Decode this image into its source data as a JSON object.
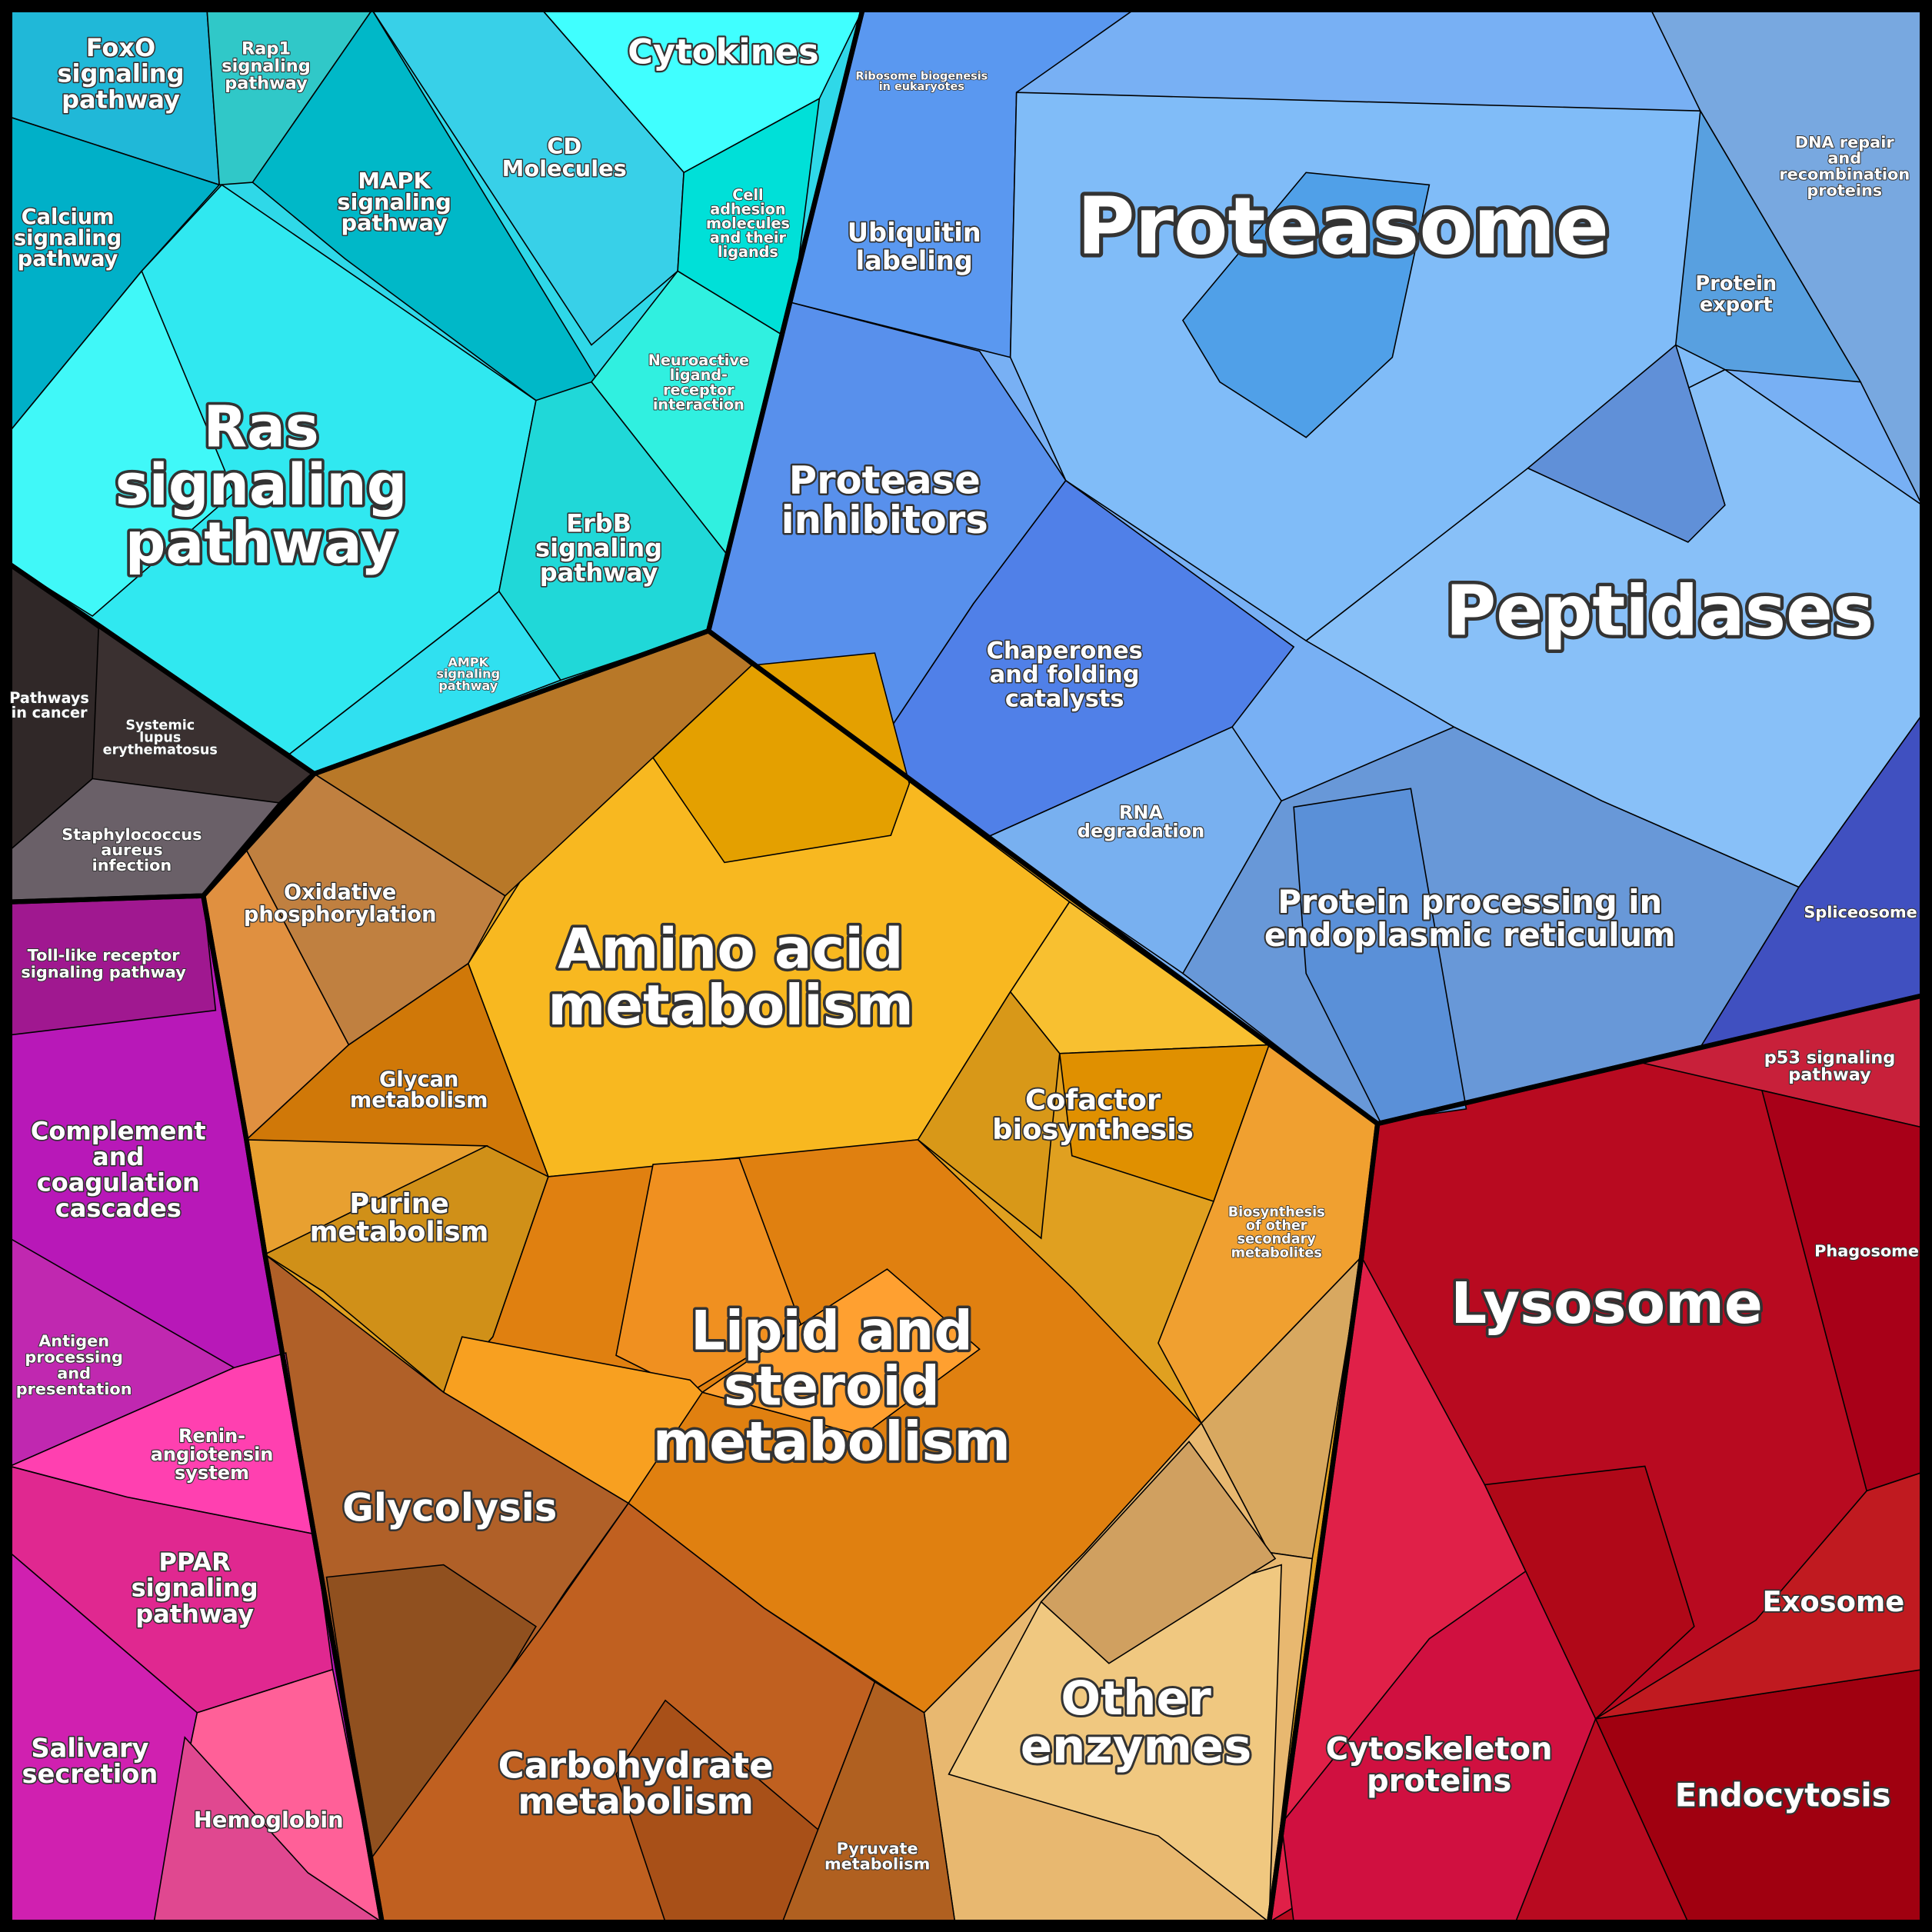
{
  "labels": [
    [
      "FoxO",
      "signaling",
      "pathway"
    ],
    [
      "Rap1",
      "signaling",
      "pathway"
    ],
    [
      "Cytokines"
    ],
    [
      "CD",
      "Molecules"
    ],
    [
      "Calcium",
      "signaling",
      "pathway"
    ],
    [
      "MAPK",
      "signaling",
      "pathway"
    ],
    [
      "Cell",
      "adhesion",
      "molecules",
      "and their",
      "ligands"
    ],
    [
      "Ras",
      "signaling",
      "pathway"
    ],
    [
      "Neuroactive",
      "ligand-",
      "receptor",
      "interaction"
    ],
    [
      "ErbB",
      "signaling",
      "pathway"
    ],
    [
      "AMPK",
      "signaling",
      "pathway"
    ],
    [
      "Pathways",
      "in cancer"
    ],
    [
      "Systemic",
      "lupus",
      "erythematosus"
    ],
    [
      "Staphylococcus",
      "aureus",
      "infection"
    ],
    [
      "Ribosome biogenesis",
      "in eukaryotes"
    ],
    [
      "Ubiquitin",
      "labeling"
    ],
    [
      "Proteasome"
    ],
    [
      "DNA repair",
      "and",
      "recombination",
      "proteins"
    ],
    [
      "Protein",
      "export"
    ],
    [
      "Protease",
      "inhibitors"
    ],
    [
      "Peptidases"
    ],
    [
      "Chaperones",
      "and folding",
      "catalysts"
    ],
    [
      "RNA",
      "degradation"
    ],
    [
      "Protein processing in",
      "endoplasmic reticulum"
    ],
    [
      "Spliceosome"
    ],
    [
      "Oxidative",
      "phosphorylation"
    ],
    [
      "Amino acid",
      "metabolism"
    ],
    [
      "Toll-like receptor",
      "signaling pathway"
    ],
    [
      "Glycan",
      "metabolism"
    ],
    [
      "Cofactor",
      "biosynthesis"
    ],
    [
      "p53 signaling",
      "pathway"
    ],
    [
      "Complement",
      "and",
      "coagulation",
      "cascades"
    ],
    [
      "Purine",
      "metabolism"
    ],
    [
      "Biosynthesis",
      "of other",
      "secondary",
      "metabolites"
    ],
    [
      "Phagosome"
    ],
    [
      "Lysosome"
    ],
    [
      "Lipid and",
      "steroid",
      "metabolism"
    ],
    [
      "Antigen",
      "processing",
      "and",
      "presentation"
    ],
    [
      "Renin-",
      "angiotensin",
      "system"
    ],
    [
      "Glycolysis"
    ],
    [
      "PPAR",
      "signaling",
      "pathway"
    ],
    [
      "Exosome"
    ],
    [
      "Other",
      "enzymes"
    ],
    [
      "Salivary",
      "secretion"
    ],
    [
      "Carbohydrate",
      "metabolism"
    ],
    [
      "Cytoskeleton",
      "proteins"
    ],
    [
      "Endocytosis"
    ],
    [
      "Hemoglobin"
    ],
    [
      "Pyruvate",
      "metabolism"
    ]
  ]
}
